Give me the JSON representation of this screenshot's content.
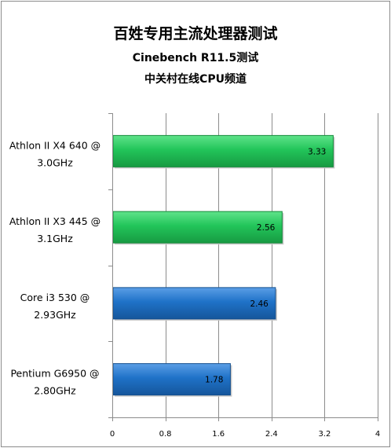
{
  "chart_data": {
    "type": "bar",
    "orientation": "horizontal",
    "title": "百姓专用主流处理器测试",
    "subtitle": "Cinebench R11.5测试",
    "source": "中关村在线CPU频道",
    "categories": [
      [
        "Athlon II X4 640 @",
        "3.0GHz"
      ],
      [
        "Athlon II X3 445 @",
        "3.1GHz"
      ],
      [
        "Core i3 530  @",
        "2.93GHz"
      ],
      [
        "Pentium G6950  @",
        "2.80GHz"
      ]
    ],
    "values": [
      3.33,
      2.56,
      2.46,
      1.78
    ],
    "value_labels": [
      "3.33",
      "2.56",
      "2.46",
      "1.78"
    ],
    "bar_colors": [
      "#22c55a",
      "#22c55a",
      "#1f72c8",
      "#1f72c8"
    ],
    "xlim": [
      0,
      4
    ],
    "xticks": [
      0,
      0.8,
      1.6,
      2.4,
      3.2,
      4
    ],
    "xtick_labels": [
      "0",
      "0.8",
      "1.6",
      "2.4",
      "3.2",
      "4"
    ],
    "grid": true,
    "legend": "none"
  }
}
